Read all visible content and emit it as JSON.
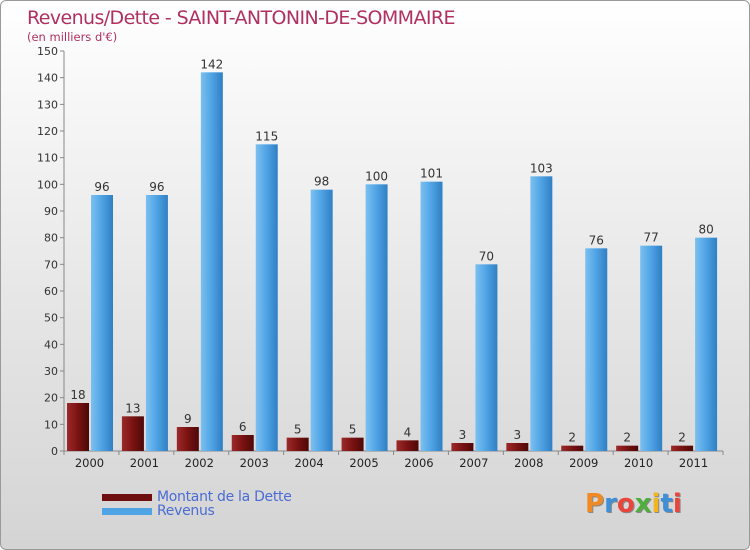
{
  "header": {
    "title": "Revenus/Dette - SAINT-ANTONIN-DE-SOMMAIRE",
    "subtitle": "(en milliers d'€)"
  },
  "colors": {
    "title": "#b03060",
    "dette": "#7a1010",
    "revenus": "#4ea4e4",
    "legend_text": "#4a6cd4"
  },
  "chart_data": {
    "type": "bar",
    "title": "Revenus/Dette - SAINT-ANTONIN-DE-SOMMAIRE",
    "ylabel": "(en milliers d'€)",
    "categories": [
      "2000",
      "2001",
      "2002",
      "2003",
      "2004",
      "2005",
      "2006",
      "2007",
      "2008",
      "2009",
      "2010",
      "2011"
    ],
    "ylim": [
      0,
      150
    ],
    "yticks": [
      0,
      10,
      20,
      30,
      40,
      50,
      60,
      70,
      80,
      90,
      100,
      110,
      120,
      130,
      140,
      150
    ],
    "grid": false,
    "legend_position": "bottom-left",
    "series": [
      {
        "name": "Montant de la Dette",
        "color": "#7a1010",
        "values": [
          18,
          13,
          9,
          6,
          5,
          5,
          4,
          3,
          3,
          2,
          2,
          2
        ],
        "labels": [
          "18",
          "13",
          "9",
          "6",
          "5",
          "5",
          "4",
          "3",
          "3",
          "2",
          "2",
          "2"
        ]
      },
      {
        "name": "Revenus",
        "color": "#4ea4e4",
        "values": [
          96,
          96,
          142,
          115,
          98,
          100,
          101,
          70,
          103,
          76,
          77,
          80
        ],
        "labels": [
          "96",
          "96",
          "142",
          "115",
          "98",
          "100",
          "101",
          "70",
          "103",
          "76",
          "77",
          "80"
        ]
      }
    ]
  },
  "legend": {
    "items": [
      {
        "label": "Montant de la Dette",
        "color": "#7a1010"
      },
      {
        "label": "Revenus",
        "color": "#4ea4e4"
      }
    ]
  },
  "logo": {
    "text": "Proxiti",
    "letter_colors": [
      "#f08a24",
      "#3f8fd8",
      "#e8463c",
      "#4fae3e",
      "#f0b521",
      "#3f8fd8",
      "#e8463c"
    ]
  }
}
